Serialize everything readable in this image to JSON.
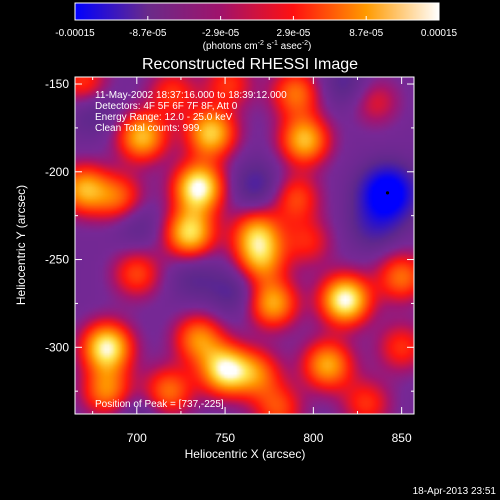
{
  "chart_data": {
    "type": "heatmap",
    "title": "Reconstructed RHESSI Image",
    "xlabel": "Heliocentric X (arcsec)",
    "ylabel": "Heliocentric Y (arcsec)",
    "xlim": [
      665,
      857
    ],
    "ylim": [
      -338,
      -146
    ],
    "x_ticks": [
      "700",
      "750",
      "800",
      "850"
    ],
    "y_ticks": [
      "-150",
      "-200",
      "-250",
      "-300"
    ],
    "colorbar": {
      "min": -0.00015,
      "max": 0.00015,
      "tick_labels": [
        "-0.00015",
        "-8.7e-05",
        "-2.9e-05",
        "2.9e-05",
        "8.7e-05",
        "0.00015"
      ],
      "units_label": "(photons cm",
      "units_sup1": "-2",
      "units_mid": " s",
      "units_sup2": "-1",
      "units_end": " asec",
      "units_sup3": "-2",
      "units_close": ")",
      "colors": [
        "#0000ff",
        "#6a2a8a",
        "#a0136b",
        "#ff1010",
        "#ff9a00",
        "#ffffff"
      ]
    },
    "info_lines": [
      "11-May-2002 18:37:16.000 to 18:39:12.000",
      "Detectors: 4F 5F 6F 7F 8F, Att 0",
      "Energy Range: 12.0 - 25.0 keV",
      "Clean     Total counts: 999."
    ],
    "peak_text": "Position of Peak = [737,-225]",
    "timestamp": "18-Apr-2013 23:51",
    "blobs": [
      {
        "x": 735,
        "y": -209,
        "amp": 1.0
      },
      {
        "x": 730,
        "y": -235,
        "amp": 0.85
      },
      {
        "x": 703,
        "y": -180,
        "amp": 0.75
      },
      {
        "x": 742,
        "y": -178,
        "amp": 0.8
      },
      {
        "x": 683,
        "y": -300,
        "amp": 0.95
      },
      {
        "x": 683,
        "y": -325,
        "amp": 0.6
      },
      {
        "x": 750,
        "y": -313,
        "amp": 0.9
      },
      {
        "x": 735,
        "y": -295,
        "amp": 0.6
      },
      {
        "x": 818,
        "y": -273,
        "amp": 1.0
      },
      {
        "x": 808,
        "y": -310,
        "amp": 0.7
      },
      {
        "x": 795,
        "y": -182,
        "amp": 0.75
      },
      {
        "x": 790,
        "y": -155,
        "amp": 0.55
      },
      {
        "x": 768,
        "y": -235,
        "amp": 0.65
      },
      {
        "x": 777,
        "y": -275,
        "amp": 0.7
      },
      {
        "x": 770,
        "y": -250,
        "amp": 0.6
      },
      {
        "x": 797,
        "y": -240,
        "amp": 0.35
      },
      {
        "x": 768,
        "y": -315,
        "amp": 0.5
      },
      {
        "x": 780,
        "y": -335,
        "amp": 0.45
      },
      {
        "x": 830,
        "y": -332,
        "amp": 0.4
      },
      {
        "x": 835,
        "y": -160,
        "amp": 0.3
      },
      {
        "x": 700,
        "y": -258,
        "amp": 0.45
      },
      {
        "x": 670,
        "y": -210,
        "amp": 0.7
      },
      {
        "x": 690,
        "y": -215,
        "amp": 0.5
      },
      {
        "x": 670,
        "y": -150,
        "amp": 0.45
      },
      {
        "x": 718,
        "y": -325,
        "amp": 0.55
      },
      {
        "x": 752,
        "y": -150,
        "amp": 0.4
      },
      {
        "x": 850,
        "y": -260,
        "amp": 0.55
      },
      {
        "x": 850,
        "y": -300,
        "amp": 0.4
      },
      {
        "x": 790,
        "y": -215,
        "amp": 0.45
      },
      {
        "x": 720,
        "y": -155,
        "amp": 0.4
      },
      {
        "x": 842,
        "y": -212,
        "amp": -1.0
      },
      {
        "x": 835,
        "y": -230,
        "amp": -0.3
      },
      {
        "x": 675,
        "y": -165,
        "amp": -0.25
      },
      {
        "x": 768,
        "y": -208,
        "amp": -0.3
      },
      {
        "x": 755,
        "y": -268,
        "amp": -0.25
      },
      {
        "x": 700,
        "y": -230,
        "amp": -0.2
      },
      {
        "x": 732,
        "y": -260,
        "amp": -0.2
      },
      {
        "x": 818,
        "y": -150,
        "amp": -0.25
      },
      {
        "x": 700,
        "y": -340,
        "amp": -0.2
      }
    ]
  }
}
